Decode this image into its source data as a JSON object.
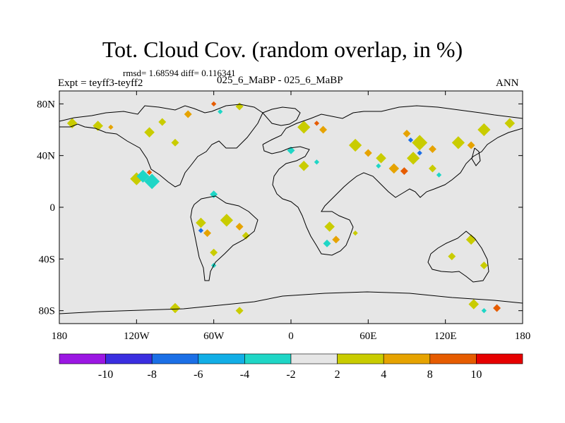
{
  "chart_data": {
    "type": "heatmap",
    "title": "Tot. Cloud Cov. (random overlap, in %)",
    "stats": "rmsd= 1.68594 diff= 0.116341",
    "left_label": "Expt = teyff3-teyff2",
    "center_label": "025_6_MaBP - 025_6_MaBP",
    "right_label": "ANN",
    "x_ticks": [
      {
        "value": -180,
        "label": "180"
      },
      {
        "value": -120,
        "label": "120W"
      },
      {
        "value": -60,
        "label": "60W"
      },
      {
        "value": 0,
        "label": "0"
      },
      {
        "value": 60,
        "label": "60E"
      },
      {
        "value": 120,
        "label": "120E"
      },
      {
        "value": 180,
        "label": "180"
      }
    ],
    "y_ticks": [
      {
        "value": 80,
        "label": "80N"
      },
      {
        "value": 40,
        "label": "40N"
      },
      {
        "value": 0,
        "label": "0"
      },
      {
        "value": -40,
        "label": "40S"
      },
      {
        "value": -80,
        "label": "80S"
      }
    ],
    "xlim": [
      -180,
      180
    ],
    "ylim": [
      -90,
      90
    ],
    "colorbar": {
      "labels": [
        "-10",
        "-8",
        "-6",
        "-4",
        "-2",
        "2",
        "4",
        "8",
        "10"
      ],
      "colors": [
        "#9b17e3",
        "#3a2ee0",
        "#1b6fe6",
        "#12aee6",
        "#1fd6c6",
        "#e6e6e6",
        "#c9cc00",
        "#e6a300",
        "#e65c00",
        "#e60000"
      ]
    },
    "blobs": [
      {
        "lon": -120,
        "lat": 22,
        "value": 3,
        "r": 5
      },
      {
        "lon": -115,
        "lat": 24,
        "value": -3,
        "r": 5
      },
      {
        "lon": -108,
        "lat": 20,
        "value": -3,
        "r": 6
      },
      {
        "lon": -110,
        "lat": 27,
        "value": 9,
        "r": 2
      },
      {
        "lon": -60,
        "lat": 10,
        "value": -3,
        "r": 3
      },
      {
        "lon": -70,
        "lat": -12,
        "value": 3,
        "r": 4
      },
      {
        "lon": -65,
        "lat": -20,
        "value": 5,
        "r": 3
      },
      {
        "lon": -70,
        "lat": -18,
        "value": -7,
        "r": 2
      },
      {
        "lon": -50,
        "lat": -10,
        "value": 3,
        "r": 5
      },
      {
        "lon": -40,
        "lat": -15,
        "value": 5,
        "r": 3
      },
      {
        "lon": -35,
        "lat": -22,
        "value": 3,
        "r": 3
      },
      {
        "lon": -60,
        "lat": -35,
        "value": 3,
        "r": 3
      },
      {
        "lon": -60,
        "lat": -45,
        "value": -3,
        "r": 2
      },
      {
        "lon": -170,
        "lat": 65,
        "value": 3,
        "r": 4
      },
      {
        "lon": -150,
        "lat": 63,
        "value": 3,
        "r": 4
      },
      {
        "lon": -140,
        "lat": 62,
        "value": 5,
        "r": 2
      },
      {
        "lon": -110,
        "lat": 58,
        "value": 3,
        "r": 4
      },
      {
        "lon": -100,
        "lat": 66,
        "value": 3,
        "r": 3
      },
      {
        "lon": -80,
        "lat": 72,
        "value": 5,
        "r": 3
      },
      {
        "lon": -60,
        "lat": 80,
        "value": 9,
        "r": 2
      },
      {
        "lon": -55,
        "lat": 74,
        "value": -3,
        "r": 2
      },
      {
        "lon": -40,
        "lat": 78,
        "value": 3,
        "r": 3
      },
      {
        "lon": -90,
        "lat": 50,
        "value": 3,
        "r": 3
      },
      {
        "lon": 10,
        "lat": 62,
        "value": 3,
        "r": 5
      },
      {
        "lon": 20,
        "lat": 65,
        "value": 9,
        "r": 2
      },
      {
        "lon": 25,
        "lat": 60,
        "value": 5,
        "r": 3
      },
      {
        "lon": 0,
        "lat": 44,
        "value": -3,
        "r": 3
      },
      {
        "lon": 10,
        "lat": 32,
        "value": 3,
        "r": 4
      },
      {
        "lon": 20,
        "lat": 35,
        "value": -3,
        "r": 2
      },
      {
        "lon": 50,
        "lat": 48,
        "value": 3,
        "r": 5
      },
      {
        "lon": 60,
        "lat": 42,
        "value": 5,
        "r": 3
      },
      {
        "lon": 70,
        "lat": 38,
        "value": 3,
        "r": 4
      },
      {
        "lon": 68,
        "lat": 32,
        "value": -3,
        "r": 2
      },
      {
        "lon": 80,
        "lat": 30,
        "value": 5,
        "r": 4
      },
      {
        "lon": 88,
        "lat": 28,
        "value": 9,
        "r": 3
      },
      {
        "lon": 95,
        "lat": 38,
        "value": 3,
        "r": 5
      },
      {
        "lon": 100,
        "lat": 50,
        "value": 3,
        "r": 6
      },
      {
        "lon": 90,
        "lat": 57,
        "value": 5,
        "r": 3
      },
      {
        "lon": 93,
        "lat": 52,
        "value": -7,
        "r": 2
      },
      {
        "lon": 100,
        "lat": 42,
        "value": -7,
        "r": 2
      },
      {
        "lon": 110,
        "lat": 45,
        "value": 5,
        "r": 3
      },
      {
        "lon": 130,
        "lat": 50,
        "value": 3,
        "r": 5
      },
      {
        "lon": 140,
        "lat": 48,
        "value": 5,
        "r": 3
      },
      {
        "lon": 150,
        "lat": 60,
        "value": 3,
        "r": 5
      },
      {
        "lon": 170,
        "lat": 65,
        "value": 3,
        "r": 4
      },
      {
        "lon": 110,
        "lat": 30,
        "value": 3,
        "r": 3
      },
      {
        "lon": 115,
        "lat": 25,
        "value": -3,
        "r": 2
      },
      {
        "lon": 30,
        "lat": -15,
        "value": 3,
        "r": 4
      },
      {
        "lon": 35,
        "lat": -25,
        "value": 5,
        "r": 3
      },
      {
        "lon": 28,
        "lat": -28,
        "value": -3,
        "r": 3
      },
      {
        "lon": 50,
        "lat": -20,
        "value": 3,
        "r": 2
      },
      {
        "lon": 140,
        "lat": -25,
        "value": 3,
        "r": 4
      },
      {
        "lon": 125,
        "lat": -38,
        "value": 3,
        "r": 3
      },
      {
        "lon": 150,
        "lat": -45,
        "value": 3,
        "r": 3
      },
      {
        "lon": 142,
        "lat": -75,
        "value": 3,
        "r": 4
      },
      {
        "lon": 160,
        "lat": -78,
        "value": 9,
        "r": 3
      },
      {
        "lon": 150,
        "lat": -80,
        "value": -3,
        "r": 2
      },
      {
        "lon": -90,
        "lat": -78,
        "value": 3,
        "r": 4
      },
      {
        "lon": -40,
        "lat": -80,
        "value": 3,
        "r": 3
      }
    ]
  }
}
